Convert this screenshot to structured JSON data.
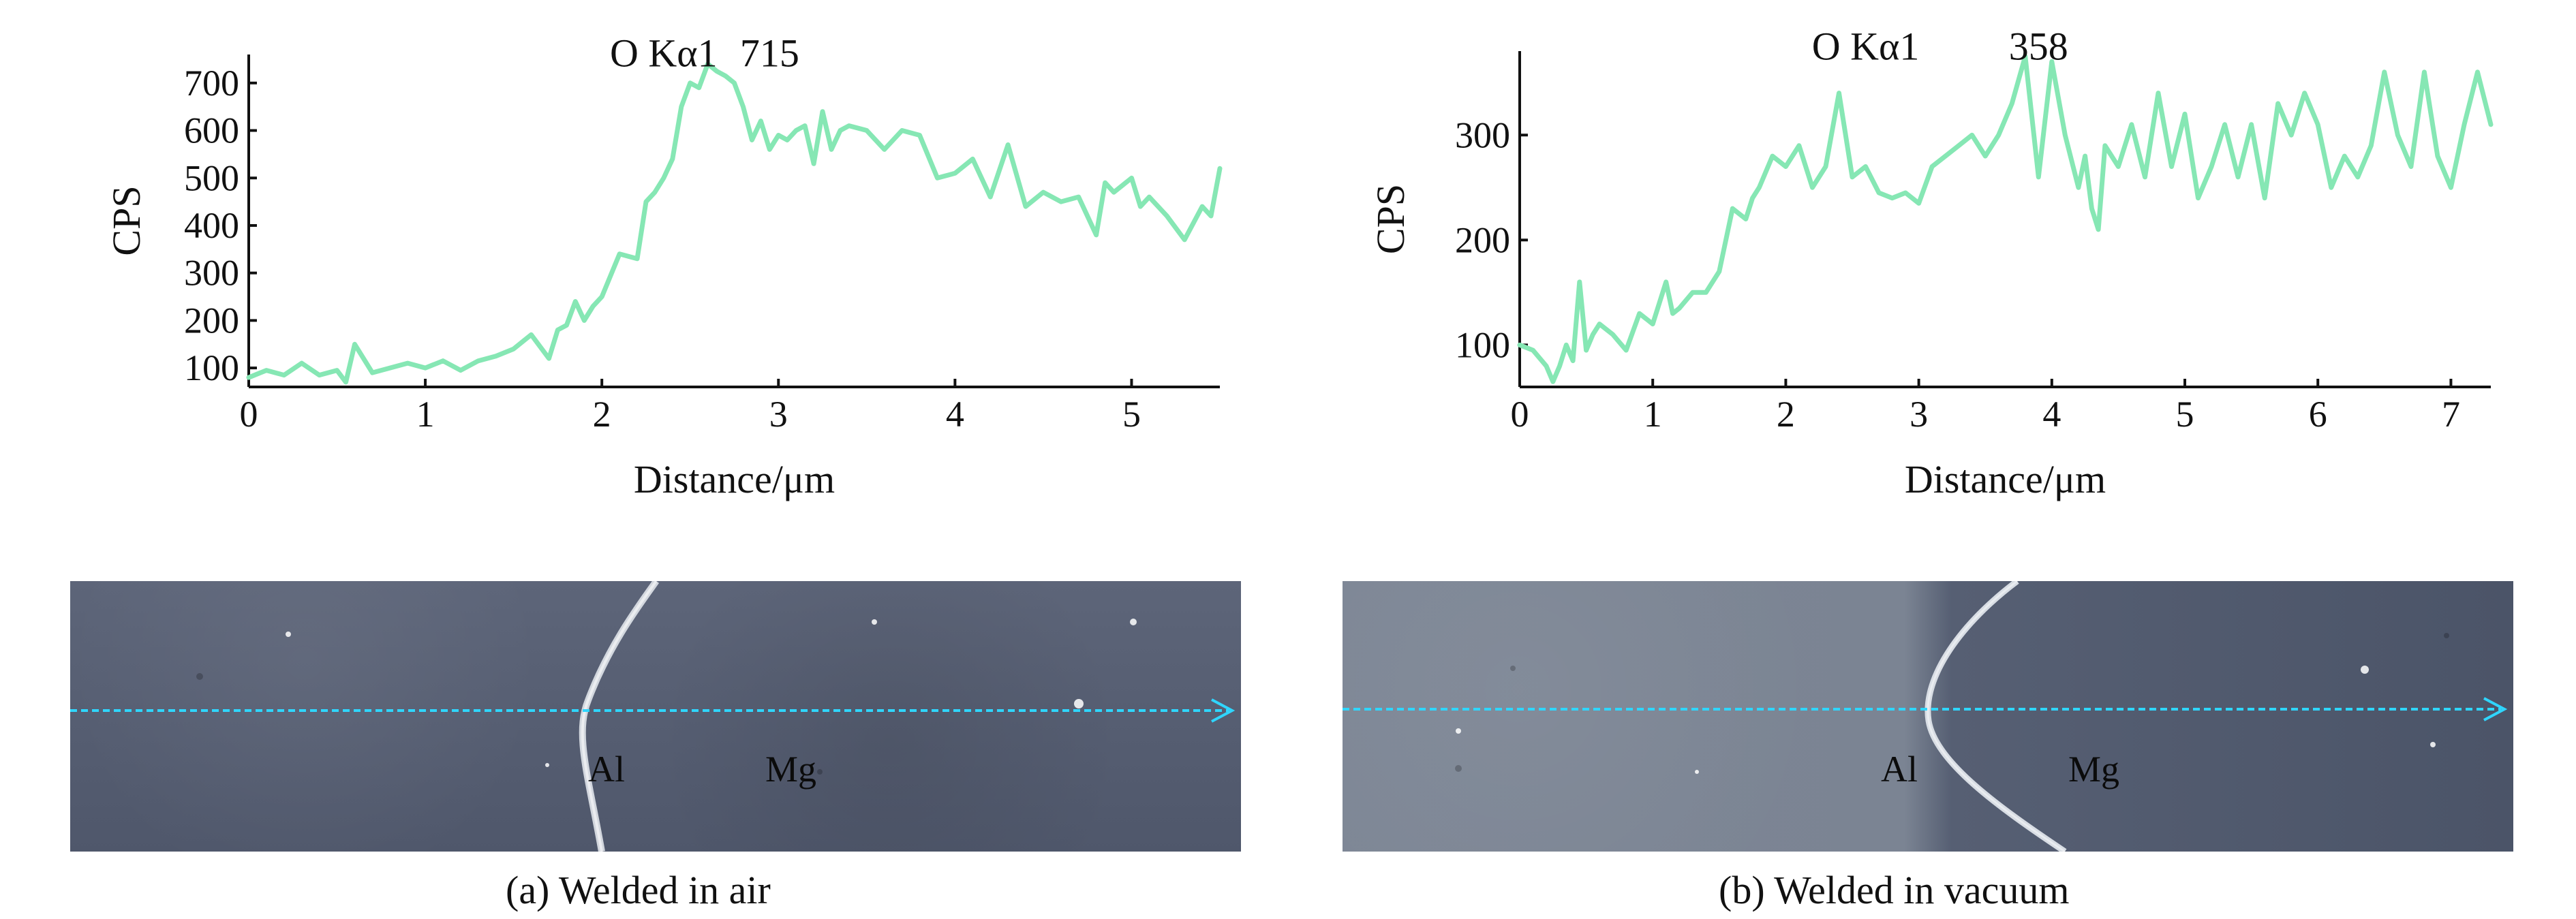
{
  "chart_data": [
    {
      "type": "line",
      "title": "",
      "xlabel": "Distance/μm",
      "ylabel": "CPS",
      "xlim": [
        0,
        5.5
      ],
      "ylim": [
        60,
        760
      ],
      "x_ticks": [
        0,
        1,
        2,
        3,
        4,
        5
      ],
      "y_ticks": [
        100,
        200,
        300,
        400,
        500,
        600,
        700
      ],
      "grid": false,
      "series": [
        {
          "color": "#86e7b4",
          "x": [
            0,
            0.1,
            0.2,
            0.3,
            0.4,
            0.5,
            0.55,
            0.6,
            0.7,
            0.8,
            0.9,
            1.0,
            1.1,
            1.2,
            1.3,
            1.4,
            1.5,
            1.6,
            1.7,
            1.75,
            1.8,
            1.85,
            1.9,
            1.95,
            2.0,
            2.1,
            2.2,
            2.25,
            2.3,
            2.35,
            2.4,
            2.45,
            2.5,
            2.55,
            2.6,
            2.65,
            2.7,
            2.75,
            2.8,
            2.85,
            2.9,
            2.95,
            3.0,
            3.05,
            3.1,
            3.15,
            3.2,
            3.25,
            3.3,
            3.35,
            3.4,
            3.5,
            3.6,
            3.7,
            3.8,
            3.9,
            4.0,
            4.1,
            4.2,
            4.3,
            4.4,
            4.5,
            4.6,
            4.7,
            4.8,
            4.85,
            4.9,
            5.0,
            5.05,
            5.1,
            5.2,
            5.3,
            5.4,
            5.45,
            5.5
          ],
          "values": [
            80,
            95,
            85,
            110,
            85,
            95,
            70,
            150,
            90,
            100,
            110,
            100,
            115,
            95,
            115,
            125,
            140,
            170,
            120,
            180,
            190,
            240,
            200,
            230,
            250,
            340,
            330,
            450,
            470,
            500,
            540,
            650,
            700,
            690,
            740,
            725,
            715,
            700,
            650,
            580,
            620,
            560,
            590,
            580,
            600,
            610,
            530,
            640,
            560,
            600,
            610,
            600,
            560,
            600,
            590,
            500,
            510,
            540,
            460,
            570,
            440,
            470,
            450,
            460,
            380,
            490,
            470,
            500,
            440,
            460,
            420,
            370,
            440,
            420,
            520
          ]
        }
      ],
      "annotations": [
        {
          "text": "O Kα1",
          "x": 2.35,
          "y": 735
        },
        {
          "text": "715",
          "x": 2.95,
          "y": 735
        }
      ]
    },
    {
      "type": "line",
      "title": "",
      "xlabel": "Distance/μm",
      "ylabel": "CPS",
      "xlim": [
        0,
        7.3
      ],
      "ylim": [
        60,
        380
      ],
      "x_ticks": [
        0,
        1,
        2,
        3,
        4,
        5,
        6,
        7
      ],
      "y_ticks": [
        100,
        200,
        300
      ],
      "grid": false,
      "series": [
        {
          "color": "#86e7b4",
          "x": [
            0,
            0.1,
            0.2,
            0.25,
            0.3,
            0.35,
            0.4,
            0.45,
            0.5,
            0.55,
            0.6,
            0.7,
            0.8,
            0.9,
            1.0,
            1.1,
            1.15,
            1.2,
            1.3,
            1.4,
            1.5,
            1.6,
            1.7,
            1.75,
            1.8,
            1.9,
            2.0,
            2.1,
            2.2,
            2.3,
            2.4,
            2.5,
            2.6,
            2.7,
            2.8,
            2.9,
            3.0,
            3.1,
            3.2,
            3.3,
            3.4,
            3.5,
            3.6,
            3.7,
            3.8,
            3.9,
            4.0,
            4.1,
            4.2,
            4.25,
            4.3,
            4.35,
            4.4,
            4.5,
            4.6,
            4.7,
            4.8,
            4.9,
            5.0,
            5.1,
            5.2,
            5.3,
            5.4,
            5.5,
            5.6,
            5.7,
            5.8,
            5.9,
            6.0,
            6.1,
            6.2,
            6.3,
            6.4,
            6.5,
            6.6,
            6.7,
            6.8,
            6.9,
            7.0,
            7.1,
            7.2,
            7.3
          ],
          "values": [
            100,
            95,
            80,
            65,
            80,
            100,
            85,
            160,
            95,
            110,
            120,
            110,
            95,
            130,
            120,
            160,
            130,
            135,
            150,
            150,
            170,
            230,
            220,
            240,
            250,
            280,
            270,
            290,
            250,
            270,
            340,
            260,
            270,
            245,
            240,
            245,
            235,
            270,
            280,
            290,
            300,
            280,
            300,
            330,
            375,
            260,
            370,
            300,
            250,
            280,
            230,
            210,
            290,
            270,
            310,
            260,
            340,
            270,
            320,
            240,
            270,
            310,
            260,
            310,
            240,
            330,
            300,
            340,
            310,
            250,
            280,
            260,
            290,
            360,
            300,
            270,
            360,
            280,
            250,
            310,
            360,
            310
          ]
        }
      ],
      "annotations": [
        {
          "text": "O Kα1",
          "x": 2.6,
          "y": 372
        },
        {
          "text": "358",
          "x": 3.9,
          "y": 372
        }
      ]
    }
  ],
  "images": {
    "a": {
      "left_label": "Al",
      "right_label": "Mg",
      "caption": "(a) Welded in air"
    },
    "b": {
      "left_label": "Al",
      "right_label": "Mg",
      "caption": "(b) Welded in vacuum"
    }
  },
  "colors": {
    "series": "#86e7b4",
    "scan_line": "#2fd6ff"
  }
}
